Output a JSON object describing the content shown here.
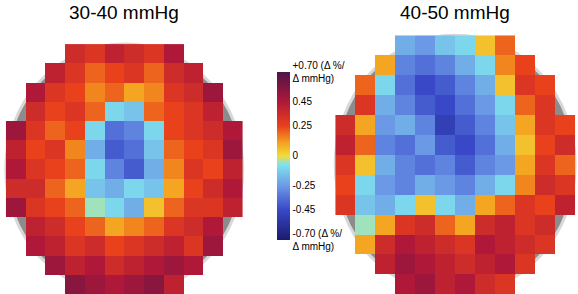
{
  "chart_data": {
    "type": "heatmap",
    "tick_labels": false,
    "colorbar_range": [
      -0.7,
      0.7
    ],
    "colorbar_ticks": [
      {
        "value": 0.7,
        "label": "+0.70 (Δ %/\nΔ mmHg)"
      },
      0.45,
      0.25,
      0,
      -0.25,
      -0.45,
      {
        "value": -0.7,
        "label": "-0.70 (Δ %/\nΔ mmHg)"
      }
    ],
    "panels": [
      {
        "title": "30-40 mmHg",
        "cells": [
          [
            null,
            null,
            null,
            0.35,
            0.3,
            0.4,
            0.35,
            0.3,
            0.45,
            null,
            null,
            null
          ],
          [
            null,
            null,
            0.4,
            0.3,
            0.2,
            0.25,
            0.3,
            0.2,
            0.35,
            0.4,
            null,
            null
          ],
          [
            null,
            0.45,
            0.3,
            0.25,
            0.15,
            0.2,
            0.1,
            0.15,
            0.3,
            0.35,
            0.5,
            null
          ],
          [
            null,
            0.35,
            0.25,
            0.3,
            0.2,
            -0.1,
            -0.15,
            0.2,
            0.25,
            0.3,
            0.4,
            null
          ],
          [
            0.5,
            0.3,
            0.2,
            0.25,
            -0.1,
            -0.35,
            -0.3,
            -0.1,
            0.25,
            0.3,
            0.35,
            0.45
          ],
          [
            0.4,
            0.25,
            0.3,
            0.15,
            -0.2,
            -0.4,
            -0.35,
            -0.15,
            0.2,
            0.25,
            0.3,
            0.5
          ],
          [
            0.45,
            0.3,
            0.25,
            0.2,
            -0.1,
            -0.3,
            -0.4,
            -0.2,
            0.15,
            0.3,
            0.25,
            0.4
          ],
          [
            0.35,
            0.35,
            0.2,
            0.1,
            -0.15,
            -0.2,
            -0.1,
            -0.15,
            0.1,
            0.25,
            0.35,
            0.45
          ],
          [
            0.5,
            0.3,
            0.25,
            0.2,
            -0.05,
            -0.1,
            -0.2,
            0.05,
            0.2,
            0.3,
            0.3,
            0.4
          ],
          [
            null,
            0.4,
            0.35,
            0.25,
            0.2,
            0.1,
            0.15,
            0.2,
            0.3,
            0.35,
            0.45,
            null
          ],
          [
            null,
            0.45,
            0.4,
            0.3,
            0.35,
            0.25,
            0.3,
            0.35,
            0.4,
            0.3,
            0.5,
            null
          ],
          [
            null,
            null,
            0.5,
            0.4,
            0.45,
            0.35,
            0.4,
            0.45,
            0.5,
            0.45,
            null,
            null
          ],
          [
            null,
            null,
            null,
            0.55,
            0.5,
            0.45,
            0.5,
            0.55,
            0.4,
            null,
            null,
            null
          ]
        ]
      },
      {
        "title": "40-50 mmHg",
        "cells": [
          [
            null,
            null,
            null,
            -0.2,
            -0.25,
            -0.15,
            -0.1,
            0.05,
            0.2,
            null,
            null,
            null
          ],
          [
            null,
            null,
            0.1,
            -0.3,
            -0.35,
            -0.3,
            -0.2,
            -0.1,
            0.15,
            0.25,
            null,
            null
          ],
          [
            null,
            0.2,
            -0.1,
            -0.35,
            -0.45,
            -0.4,
            -0.3,
            -0.2,
            0.05,
            0.3,
            0.25,
            null
          ],
          [
            null,
            0.3,
            -0.2,
            -0.3,
            -0.4,
            -0.45,
            -0.35,
            -0.25,
            -0.1,
            0.2,
            0.3,
            null
          ],
          [
            0.35,
            0.1,
            -0.25,
            -0.2,
            -0.3,
            -0.5,
            -0.4,
            -0.3,
            -0.15,
            0.1,
            0.3,
            0.25
          ],
          [
            0.4,
            0.2,
            -0.3,
            -0.35,
            -0.25,
            -0.4,
            -0.45,
            -0.35,
            -0.2,
            0.05,
            0.25,
            0.35
          ],
          [
            0.3,
            0.05,
            -0.2,
            -0.3,
            -0.35,
            -0.3,
            -0.4,
            -0.3,
            -0.25,
            0.1,
            0.3,
            0.2
          ],
          [
            0.25,
            -0.1,
            -0.25,
            -0.3,
            -0.2,
            -0.25,
            -0.3,
            -0.2,
            -0.1,
            0.15,
            0.35,
            0.3
          ],
          [
            0.3,
            -0.15,
            -0.2,
            -0.1,
            0.05,
            -0.1,
            -0.2,
            0.1,
            0.2,
            0.3,
            0.25,
            0.4
          ],
          [
            null,
            -0.05,
            0.1,
            0.3,
            0.35,
            0.2,
            0.1,
            0.35,
            0.4,
            0.3,
            0.35,
            null
          ],
          [
            null,
            0.1,
            0.35,
            0.45,
            0.4,
            0.35,
            0.3,
            0.45,
            0.4,
            0.35,
            0.3,
            null
          ],
          [
            null,
            null,
            0.4,
            0.5,
            0.45,
            0.4,
            0.35,
            0.4,
            0.45,
            0.3,
            null,
            null
          ],
          [
            null,
            null,
            null,
            0.45,
            0.5,
            0.4,
            0.45,
            0.35,
            0.3,
            null,
            null,
            null
          ]
        ]
      }
    ]
  }
}
